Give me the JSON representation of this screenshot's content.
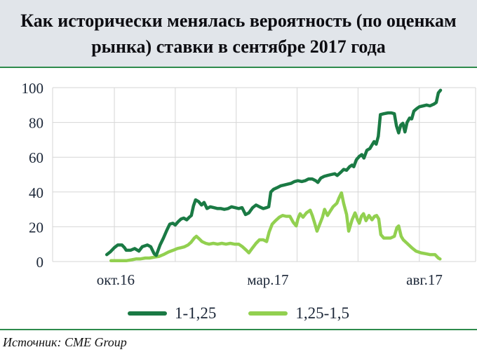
{
  "header": {
    "title": "Как исторически менялась вероятность (по оценкам рынка) ставки в сентябре 2017 года"
  },
  "source": {
    "label": "Источник: CME Group"
  },
  "colors": {
    "header_background": "#e1e5ea",
    "divider_green": "#2e8b4c",
    "gridline": "#d6d6d6",
    "axis_text": "#1c2738",
    "series_dark_green": "#1a7a44",
    "series_light_green": "#92d050"
  },
  "chart_data": {
    "type": "line",
    "title": "Как исторически менялась вероятность (по оценкам рынка) ставки в сентябре 2017 года",
    "xlabel": "",
    "ylabel": "",
    "ylim": [
      0,
      100
    ],
    "y_ticks": [
      0,
      20,
      40,
      60,
      80,
      100
    ],
    "grid": true,
    "legend_position": "bottom",
    "x_tick_labels": [
      {
        "label": "окт.16",
        "pos": 0.149
      },
      {
        "label": "мар.17",
        "pos": 0.509
      },
      {
        "label": "авг.17",
        "pos": 0.879
      }
    ],
    "x_gridlines": [
      0,
      0.146,
      0.29,
      0.434,
      0.578,
      0.722,
      0.867,
      1.0
    ],
    "series": [
      {
        "name": "1-1,25",
        "color": "#1a7a44",
        "points": [
          [
            0.128,
            4
          ],
          [
            0.136,
            5.5
          ],
          [
            0.146,
            8
          ],
          [
            0.154,
            9.5
          ],
          [
            0.164,
            9.5
          ],
          [
            0.17,
            8
          ],
          [
            0.174,
            6.5
          ],
          [
            0.184,
            6.5
          ],
          [
            0.194,
            7.5
          ],
          [
            0.204,
            6
          ],
          [
            0.212,
            8.5
          ],
          [
            0.224,
            9.5
          ],
          [
            0.232,
            8.5
          ],
          [
            0.24,
            4.5
          ],
          [
            0.245,
            3.5
          ],
          [
            0.254,
            9.5
          ],
          [
            0.262,
            13.5
          ],
          [
            0.27,
            18
          ],
          [
            0.277,
            21.5
          ],
          [
            0.284,
            22
          ],
          [
            0.29,
            21
          ],
          [
            0.297,
            23
          ],
          [
            0.304,
            24.5
          ],
          [
            0.31,
            25
          ],
          [
            0.317,
            24
          ],
          [
            0.323,
            25.5
          ],
          [
            0.328,
            26.5
          ],
          [
            0.333,
            32
          ],
          [
            0.338,
            35.5
          ],
          [
            0.345,
            34.5
          ],
          [
            0.352,
            32.5
          ],
          [
            0.358,
            34
          ],
          [
            0.365,
            30.5
          ],
          [
            0.373,
            31.5
          ],
          [
            0.381,
            31
          ],
          [
            0.39,
            30.5
          ],
          [
            0.398,
            30.5
          ],
          [
            0.406,
            30
          ],
          [
            0.415,
            30.5
          ],
          [
            0.423,
            31.5
          ],
          [
            0.431,
            31
          ],
          [
            0.44,
            30.5
          ],
          [
            0.448,
            31
          ],
          [
            0.456,
            27
          ],
          [
            0.464,
            28
          ],
          [
            0.473,
            31
          ],
          [
            0.481,
            32.5
          ],
          [
            0.489,
            31.5
          ],
          [
            0.498,
            30.5
          ],
          [
            0.506,
            31
          ],
          [
            0.511,
            31.5
          ],
          [
            0.516,
            40
          ],
          [
            0.522,
            41.5
          ],
          [
            0.531,
            42.5
          ],
          [
            0.539,
            43.5
          ],
          [
            0.547,
            44
          ],
          [
            0.556,
            44.5
          ],
          [
            0.564,
            45
          ],
          [
            0.572,
            46
          ],
          [
            0.58,
            46.5
          ],
          [
            0.589,
            46
          ],
          [
            0.597,
            46.5
          ],
          [
            0.605,
            47.5
          ],
          [
            0.614,
            47.5
          ],
          [
            0.622,
            46.5
          ],
          [
            0.627,
            45.5
          ],
          [
            0.634,
            48
          ],
          [
            0.642,
            49
          ],
          [
            0.65,
            49.5
          ],
          [
            0.658,
            50
          ],
          [
            0.667,
            50.5
          ],
          [
            0.673,
            49.5
          ],
          [
            0.682,
            51.5
          ],
          [
            0.688,
            53
          ],
          [
            0.695,
            52.5
          ],
          [
            0.702,
            54.5
          ],
          [
            0.708,
            55.5
          ],
          [
            0.712,
            54.5
          ],
          [
            0.718,
            58.5
          ],
          [
            0.725,
            60.5
          ],
          [
            0.731,
            61.5
          ],
          [
            0.736,
            59.5
          ],
          [
            0.743,
            64
          ],
          [
            0.75,
            65
          ],
          [
            0.755,
            67
          ],
          [
            0.76,
            69
          ],
          [
            0.765,
            67.5
          ],
          [
            0.77,
            72
          ],
          [
            0.775,
            84.5
          ],
          [
            0.783,
            85
          ],
          [
            0.793,
            85.5
          ],
          [
            0.801,
            85.5
          ],
          [
            0.808,
            85
          ],
          [
            0.813,
            78
          ],
          [
            0.818,
            74
          ],
          [
            0.823,
            78.5
          ],
          [
            0.828,
            79.5
          ],
          [
            0.833,
            74.5
          ],
          [
            0.838,
            80
          ],
          [
            0.844,
            82.5
          ],
          [
            0.849,
            82
          ],
          [
            0.854,
            86.5
          ],
          [
            0.861,
            88
          ],
          [
            0.867,
            89
          ],
          [
            0.876,
            89.5
          ],
          [
            0.884,
            90
          ],
          [
            0.892,
            89.5
          ],
          [
            0.901,
            90.5
          ],
          [
            0.907,
            91.5
          ],
          [
            0.912,
            97
          ],
          [
            0.917,
            98.5
          ]
        ]
      },
      {
        "name": "1,25-1,5",
        "color": "#92d050",
        "points": [
          [
            0.138,
            0.5
          ],
          [
            0.149,
            0.5
          ],
          [
            0.161,
            0.5
          ],
          [
            0.174,
            0.5
          ],
          [
            0.187,
            1
          ],
          [
            0.197,
            1.5
          ],
          [
            0.207,
            1.5
          ],
          [
            0.219,
            2
          ],
          [
            0.229,
            2
          ],
          [
            0.24,
            2.5
          ],
          [
            0.252,
            3
          ],
          [
            0.262,
            4
          ],
          [
            0.274,
            5.5
          ],
          [
            0.285,
            6.5
          ],
          [
            0.295,
            7.5
          ],
          [
            0.304,
            8
          ],
          [
            0.312,
            8.5
          ],
          [
            0.32,
            9.5
          ],
          [
            0.327,
            11
          ],
          [
            0.335,
            13.5
          ],
          [
            0.34,
            14.5
          ],
          [
            0.347,
            13
          ],
          [
            0.353,
            11.5
          ],
          [
            0.362,
            10.5
          ],
          [
            0.37,
            10
          ],
          [
            0.38,
            10.5
          ],
          [
            0.39,
            10
          ],
          [
            0.4,
            10.5
          ],
          [
            0.41,
            10
          ],
          [
            0.42,
            10.5
          ],
          [
            0.43,
            10
          ],
          [
            0.44,
            10
          ],
          [
            0.449,
            8.5
          ],
          [
            0.458,
            6.5
          ],
          [
            0.464,
            5
          ],
          [
            0.473,
            8
          ],
          [
            0.481,
            10.5
          ],
          [
            0.489,
            12.5
          ],
          [
            0.498,
            12.5
          ],
          [
            0.506,
            11.5
          ],
          [
            0.512,
            17
          ],
          [
            0.519,
            21.5
          ],
          [
            0.527,
            23.5
          ],
          [
            0.536,
            25.5
          ],
          [
            0.544,
            26.5
          ],
          [
            0.552,
            26
          ],
          [
            0.561,
            26
          ],
          [
            0.569,
            22.5
          ],
          [
            0.576,
            20.5
          ],
          [
            0.58,
            24.5
          ],
          [
            0.585,
            27.5
          ],
          [
            0.592,
            25.5
          ],
          [
            0.6,
            28
          ],
          [
            0.609,
            29.5
          ],
          [
            0.614,
            26.5
          ],
          [
            0.619,
            22.5
          ],
          [
            0.625,
            17.5
          ],
          [
            0.63,
            20.5
          ],
          [
            0.638,
            25.5
          ],
          [
            0.643,
            30
          ],
          [
            0.65,
            26.5
          ],
          [
            0.655,
            28.5
          ],
          [
            0.663,
            31.5
          ],
          [
            0.672,
            33.5
          ],
          [
            0.677,
            36.5
          ],
          [
            0.683,
            39.5
          ],
          [
            0.688,
            33.5
          ],
          [
            0.695,
            27
          ],
          [
            0.7,
            17.5
          ],
          [
            0.708,
            24
          ],
          [
            0.715,
            28
          ],
          [
            0.721,
            24
          ],
          [
            0.725,
            22
          ],
          [
            0.73,
            26
          ],
          [
            0.735,
            27.5
          ],
          [
            0.741,
            23.5
          ],
          [
            0.748,
            26.5
          ],
          [
            0.755,
            24
          ],
          [
            0.761,
            26
          ],
          [
            0.766,
            26.5
          ],
          [
            0.771,
            24.5
          ],
          [
            0.776,
            15.5
          ],
          [
            0.783,
            13.5
          ],
          [
            0.791,
            13.5
          ],
          [
            0.799,
            13.5
          ],
          [
            0.808,
            14.5
          ],
          [
            0.814,
            19.5
          ],
          [
            0.818,
            20.5
          ],
          [
            0.824,
            14.5
          ],
          [
            0.829,
            12.5
          ],
          [
            0.838,
            10.5
          ],
          [
            0.849,
            8
          ],
          [
            0.859,
            6
          ],
          [
            0.871,
            5
          ],
          [
            0.882,
            4.5
          ],
          [
            0.892,
            4
          ],
          [
            0.904,
            4
          ],
          [
            0.912,
            2
          ],
          [
            0.916,
            1.5
          ]
        ]
      }
    ]
  }
}
